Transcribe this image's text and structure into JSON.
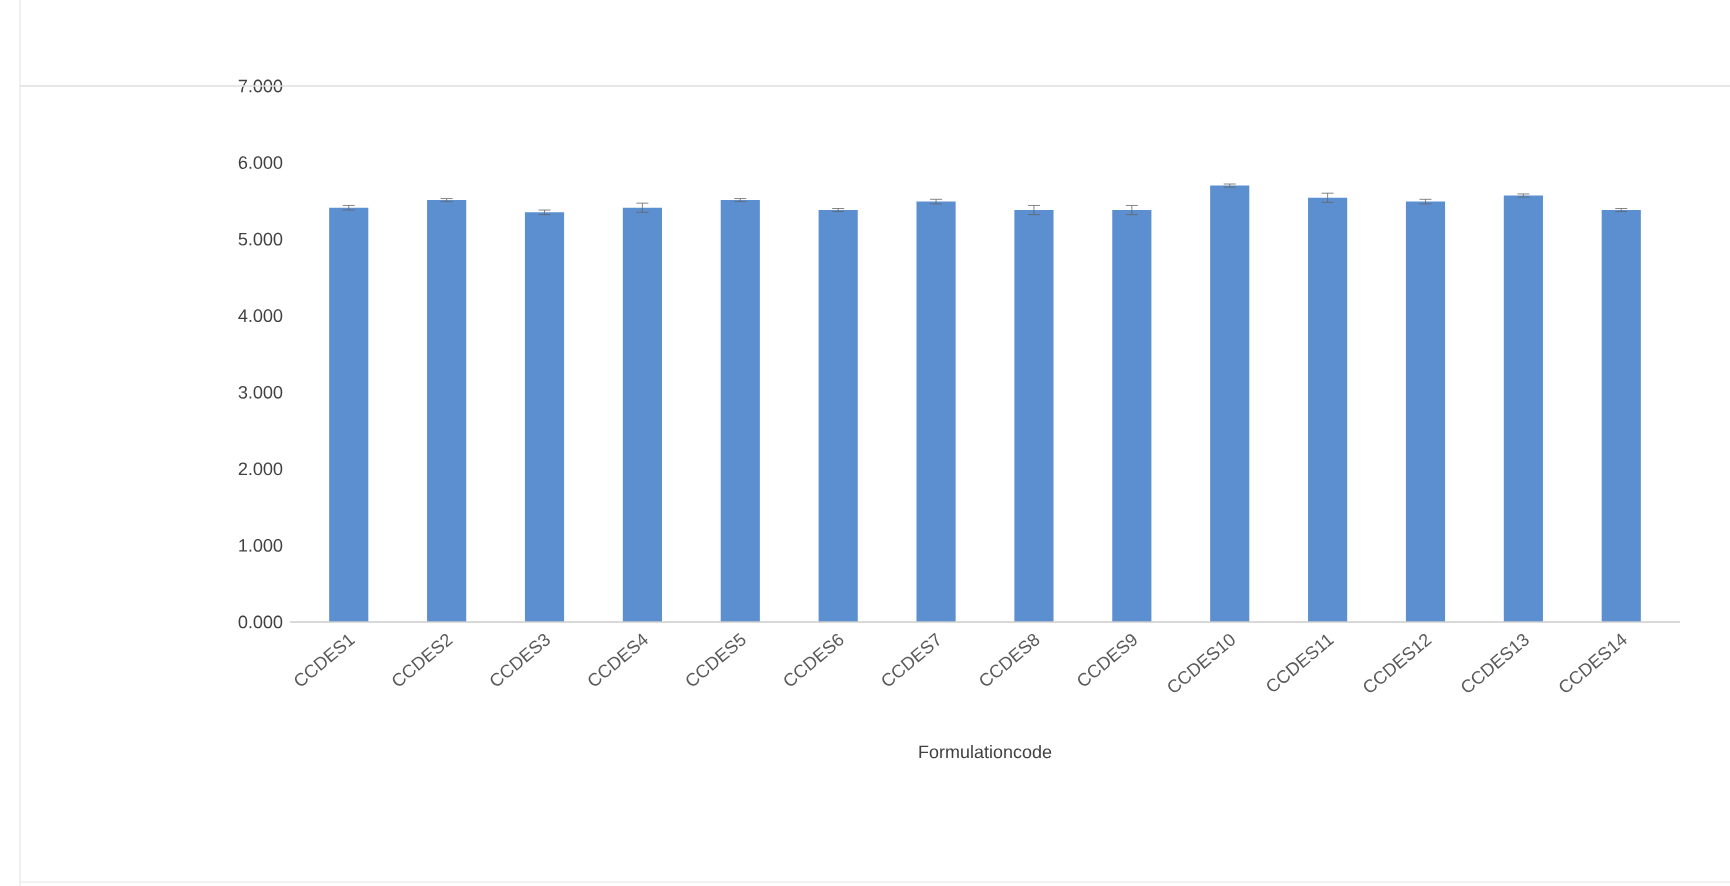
{
  "chart_data": {
    "type": "bar",
    "xlabel": "Formulationcode",
    "categories": [
      "CCDES1",
      "CCDES2",
      "CCDES3",
      "CCDES4",
      "CCDES5",
      "CCDES6",
      "CCDES7",
      "CCDES8",
      "CCDES9",
      "CCDES10",
      "CCDES11",
      "CCDES12",
      "CCDES13",
      "CCDES14"
    ],
    "values": [
      5.41,
      5.51,
      5.35,
      5.41,
      5.51,
      5.38,
      5.49,
      5.38,
      5.38,
      5.7,
      5.54,
      5.49,
      5.57,
      5.38
    ],
    "errors": [
      0.03,
      0.02,
      0.03,
      0.06,
      0.02,
      0.02,
      0.03,
      0.06,
      0.06,
      0.02,
      0.06,
      0.03,
      0.02,
      0.02
    ],
    "color": "#5b8fd0",
    "ylim": [
      0,
      7
    ],
    "yticks": [
      {
        "value": 0,
        "label": "0.000"
      },
      {
        "value": 1,
        "label": "1.000"
      },
      {
        "value": 2,
        "label": "2.000"
      },
      {
        "value": 3,
        "label": "3.000"
      },
      {
        "value": 4,
        "label": "4.000"
      },
      {
        "value": 5,
        "label": "5.000"
      },
      {
        "value": 6,
        "label": "6.000"
      },
      {
        "value": 7,
        "label": "7.000"
      }
    ]
  }
}
